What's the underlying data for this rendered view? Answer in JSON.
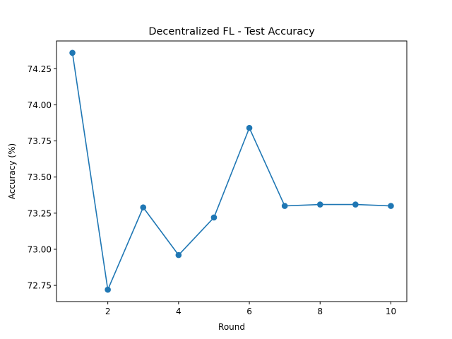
{
  "chart_data": {
    "type": "line",
    "title": "Decentralized FL - Test Accuracy",
    "xlabel": "Round",
    "ylabel": "Accuracy (%)",
    "x": [
      1,
      2,
      3,
      4,
      5,
      6,
      7,
      8,
      9,
      10
    ],
    "series": [
      {
        "values": [
          74.36,
          72.72,
          73.29,
          72.96,
          73.22,
          73.84,
          73.3,
          73.31,
          73.31,
          73.3
        ],
        "color": "#1f77b4",
        "marker": "circle"
      }
    ],
    "xlim": [
      0.55,
      10.45
    ],
    "ylim": [
      72.638,
      74.442
    ],
    "xticks": [
      2,
      4,
      6,
      8,
      10
    ],
    "xtick_labels": [
      "2",
      "4",
      "6",
      "8",
      "10"
    ],
    "yticks": [
      72.75,
      73.0,
      73.25,
      73.5,
      73.75,
      74.0,
      74.25
    ],
    "ytick_labels": [
      "72.75",
      "73.00",
      "73.25",
      "73.50",
      "73.75",
      "74.00",
      "74.25"
    ],
    "grid": false,
    "legend": "none"
  }
}
